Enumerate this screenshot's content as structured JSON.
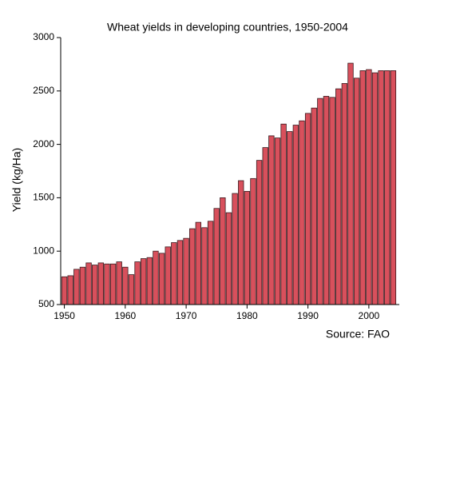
{
  "chart_data": {
    "type": "bar",
    "title": "Wheat yields in developing countries, 1950-2004",
    "y_label": "Yield (kg/Ha)",
    "source": "Source:  FAO",
    "x": [
      1950,
      1951,
      1952,
      1953,
      1954,
      1955,
      1956,
      1957,
      1958,
      1959,
      1960,
      1961,
      1962,
      1963,
      1964,
      1965,
      1966,
      1967,
      1968,
      1969,
      1970,
      1971,
      1972,
      1973,
      1974,
      1975,
      1976,
      1977,
      1978,
      1979,
      1980,
      1981,
      1982,
      1983,
      1984,
      1985,
      1986,
      1987,
      1988,
      1989,
      1990,
      1991,
      1992,
      1993,
      1994,
      1995,
      1996,
      1997,
      1998,
      1999,
      2000,
      2001,
      2002,
      2003,
      2004
    ],
    "values": [
      760,
      770,
      830,
      850,
      890,
      870,
      890,
      880,
      880,
      900,
      850,
      780,
      900,
      930,
      940,
      1000,
      980,
      1040,
      1080,
      1100,
      1120,
      1210,
      1270,
      1220,
      1280,
      1400,
      1500,
      1360,
      1540,
      1660,
      1560,
      1680,
      1850,
      1970,
      2080,
      2060,
      2190,
      2120,
      2180,
      2220,
      2290,
      2340,
      2430,
      2450,
      2440,
      2520,
      2570,
      2760,
      2620,
      2690,
      2700,
      2670,
      2690,
      2690,
      2690
    ],
    "color": "#d8505c",
    "xlim": [
      1949.4,
      2005
    ],
    "xticks": [
      1950,
      1960,
      1970,
      1980,
      1990,
      2000
    ],
    "ylim": [
      500,
      3000
    ],
    "yticks": [
      500,
      1000,
      1500,
      2000,
      2500,
      3000
    ]
  }
}
